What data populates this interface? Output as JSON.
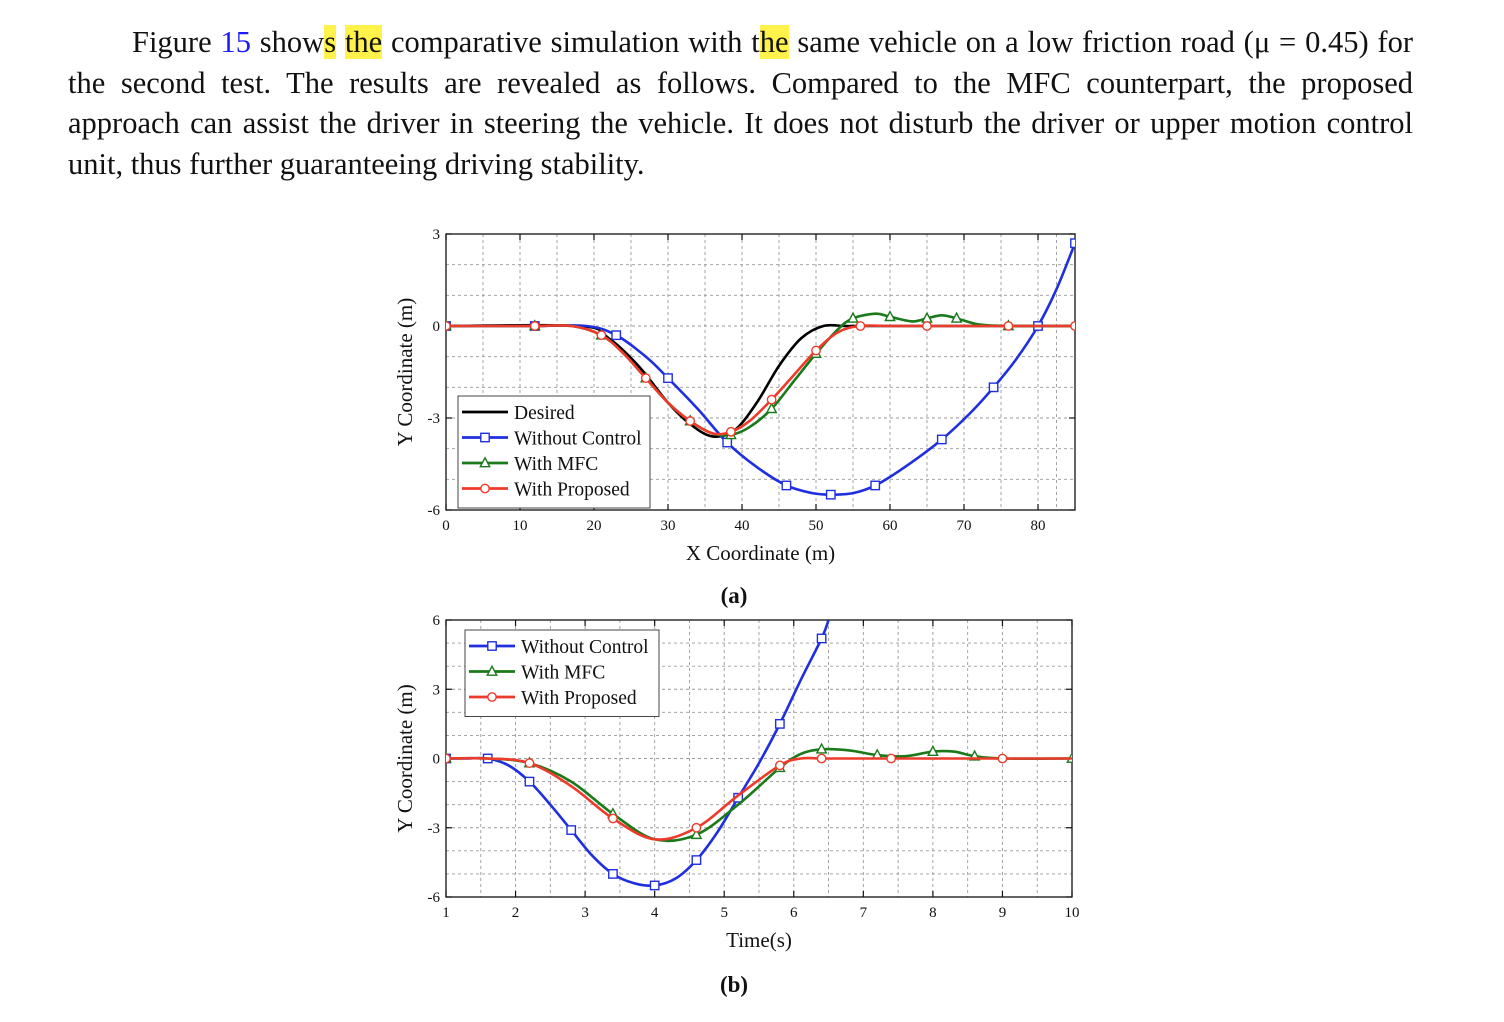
{
  "paragraph": {
    "t1": "Figure ",
    "fig_ref": "15",
    "t2": " show",
    "hl1": "s",
    "t3": " ",
    "hl2": "the",
    "t4": " comparative simulation with t",
    "hl3": "he",
    "t5": " same vehicle on a low friction road (μ = 0.45) for the second test. The results are revealed as follows. Compared to the MFC counterpart, the proposed approach can assist the driver in steering the vehicle. It does not disturb the driver or upper motion control unit, thus further guaranteeing driving stability."
  },
  "colors": {
    "desired": "#000000",
    "without_control": "#1f2fe0",
    "with_mfc": "#1a7a1a",
    "with_proposed": "#ee3a2a",
    "highlight": "#fff24a",
    "link": "#1a1aff"
  },
  "figure": {
    "caption_a": "(a)",
    "caption_b": "(b)"
  },
  "chart_data": [
    {
      "type": "line",
      "caption": "(a)",
      "xlabel": "X Coordinate (m)",
      "ylabel": "Y Coordinate (m)",
      "xlim": [
        0,
        85
      ],
      "ylim": [
        -6,
        3
      ],
      "xticks": [
        0,
        10,
        20,
        30,
        40,
        50,
        60,
        70,
        80
      ],
      "yticks": [
        -6,
        -3,
        0,
        3
      ],
      "grid": true,
      "legend": "lower-left",
      "series": [
        {
          "name": "Desired",
          "marker": "none",
          "color": "#000000",
          "x": [
            0,
            18,
            22,
            26,
            30,
            33,
            36,
            39,
            42,
            45,
            48,
            51,
            54,
            58,
            85
          ],
          "y": [
            0,
            0,
            -0.4,
            -1.3,
            -2.5,
            -3.2,
            -3.6,
            -3.4,
            -2.5,
            -1.3,
            -0.4,
            0,
            0,
            0,
            0
          ]
        },
        {
          "name": "Without Control",
          "marker": "square",
          "color": "#1f2fe0",
          "x": [
            0,
            6,
            12,
            19,
            23,
            27,
            30,
            34,
            38,
            42,
            46,
            49.5,
            52,
            55,
            58,
            62,
            67,
            71,
            74,
            77,
            80,
            82.5,
            85
          ],
          "y": [
            0,
            0,
            0,
            0,
            -0.3,
            -1.0,
            -1.7,
            -2.7,
            -3.8,
            -4.6,
            -5.2,
            -5.45,
            -5.5,
            -5.45,
            -5.2,
            -4.6,
            -3.7,
            -2.8,
            -2.0,
            -1.1,
            0,
            1.2,
            2.7
          ]
        },
        {
          "name": "With MFC",
          "marker": "triangle",
          "color": "#1a7a1a",
          "x": [
            0,
            6,
            12,
            17,
            21,
            24,
            27,
            30,
            33,
            36,
            38.5,
            41,
            44,
            47,
            50,
            53,
            55,
            58,
            60,
            63,
            65,
            67,
            69,
            72,
            76,
            85
          ],
          "y": [
            0,
            0,
            0,
            0,
            -0.3,
            -0.9,
            -1.7,
            -2.5,
            -3.1,
            -3.5,
            -3.55,
            -3.3,
            -2.7,
            -1.8,
            -0.9,
            -0.1,
            0.25,
            0.4,
            0.3,
            0.15,
            0.25,
            0.35,
            0.25,
            0.05,
            0,
            0
          ]
        },
        {
          "name": "With Proposed",
          "marker": "circle",
          "color": "#ee3a2a",
          "x": [
            0,
            6,
            12,
            17,
            21,
            24,
            27,
            30,
            33,
            36,
            38.5,
            41,
            44,
            47,
            50,
            53,
            56,
            60,
            65,
            70,
            76,
            81,
            85
          ],
          "y": [
            0,
            0,
            0,
            0,
            -0.3,
            -0.9,
            -1.7,
            -2.5,
            -3.1,
            -3.5,
            -3.45,
            -3.1,
            -2.4,
            -1.6,
            -0.8,
            -0.2,
            0,
            0,
            0,
            0,
            0,
            0,
            0
          ]
        }
      ]
    },
    {
      "type": "line",
      "caption": "(b)",
      "xlabel": "Time(s)",
      "ylabel": "Y Coordinate (m)",
      "xlim": [
        1,
        10
      ],
      "ylim": [
        -6,
        6
      ],
      "xticks": [
        1,
        2,
        3,
        4,
        5,
        6,
        7,
        8,
        9,
        10
      ],
      "yticks": [
        -6,
        -3,
        0,
        3,
        6
      ],
      "grid": true,
      "legend": "top-left",
      "series": [
        {
          "name": "Without Control",
          "marker": "square",
          "color": "#1f2fe0",
          "x": [
            1,
            1.3,
            1.6,
            1.9,
            2.2,
            2.5,
            2.8,
            3.1,
            3.4,
            3.7,
            4.0,
            4.3,
            4.6,
            4.9,
            5.2,
            5.5,
            5.8,
            6.1,
            6.4,
            6.5
          ],
          "y": [
            0,
            0,
            0,
            -0.3,
            -1.0,
            -2.0,
            -3.1,
            -4.2,
            -5.0,
            -5.4,
            -5.5,
            -5.2,
            -4.4,
            -3.2,
            -1.7,
            -0.2,
            1.5,
            3.4,
            5.2,
            6.0
          ]
        },
        {
          "name": "With MFC",
          "marker": "triangle",
          "color": "#1a7a1a",
          "x": [
            1,
            1.6,
            2.2,
            2.8,
            3.4,
            4.0,
            4.6,
            5.2,
            5.8,
            6.1,
            6.4,
            6.8,
            7.2,
            7.6,
            8.0,
            8.3,
            8.6,
            9.0,
            10
          ],
          "y": [
            0,
            0,
            -0.2,
            -1.0,
            -2.4,
            -3.5,
            -3.3,
            -2.0,
            -0.4,
            0.2,
            0.4,
            0.35,
            0.15,
            0.1,
            0.3,
            0.3,
            0.1,
            0,
            0
          ]
        },
        {
          "name": "With Proposed",
          "marker": "circle",
          "color": "#ee3a2a",
          "x": [
            1,
            1.6,
            2.2,
            2.8,
            3.4,
            4.0,
            4.6,
            5.2,
            5.8,
            6.1,
            6.4,
            6.8,
            7.4,
            8.0,
            9.0,
            10
          ],
          "y": [
            0,
            0,
            -0.2,
            -1.2,
            -2.6,
            -3.5,
            -3.0,
            -1.6,
            -0.3,
            0,
            0,
            0,
            0,
            0,
            0,
            0
          ]
        }
      ]
    }
  ]
}
